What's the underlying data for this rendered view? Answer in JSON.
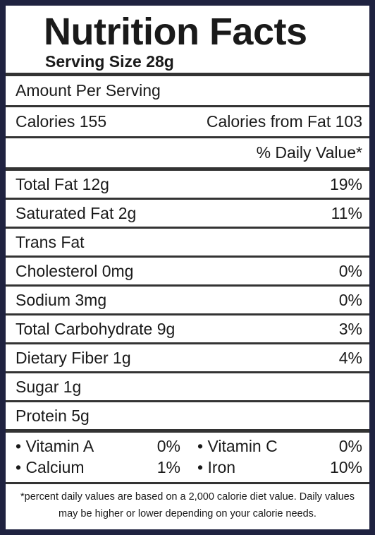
{
  "header": {
    "title": "Nutrition Facts",
    "serving_size": "Serving Size 28g"
  },
  "amount_per_serving": "Amount Per Serving",
  "calories": {
    "label": "Calories 155",
    "from_fat": "Calories from Fat 103"
  },
  "daily_value_header": "% Daily Value*",
  "nutrients": [
    {
      "name": "Total Fat 12g",
      "dv": "19%"
    },
    {
      "name": "Saturated Fat 2g",
      "dv": "11%"
    },
    {
      "name": "Trans Fat"
    },
    {
      "name": "Cholesterol 0mg",
      "dv": "0%"
    },
    {
      "name": "Sodium 3mg",
      "dv": "0%"
    },
    {
      "name": "Total Carbohydrate 9g",
      "dv": "3%"
    },
    {
      "name": "Dietary Fiber 1g",
      "dv": "4%"
    },
    {
      "name": "Sugar 1g"
    },
    {
      "name": "Protein 5g"
    }
  ],
  "vitamins": [
    {
      "name": "• Vitamin A",
      "dv": "0%"
    },
    {
      "name": "• Vitamin C",
      "dv": "0%"
    },
    {
      "name": "• Calcium",
      "dv": "1%"
    },
    {
      "name": "• Iron",
      "dv": "10%"
    }
  ],
  "footnote": "*percent daily values are based on a 2,000 calorie diet value. Daily values may be higher or lower depending on your calorie needs."
}
